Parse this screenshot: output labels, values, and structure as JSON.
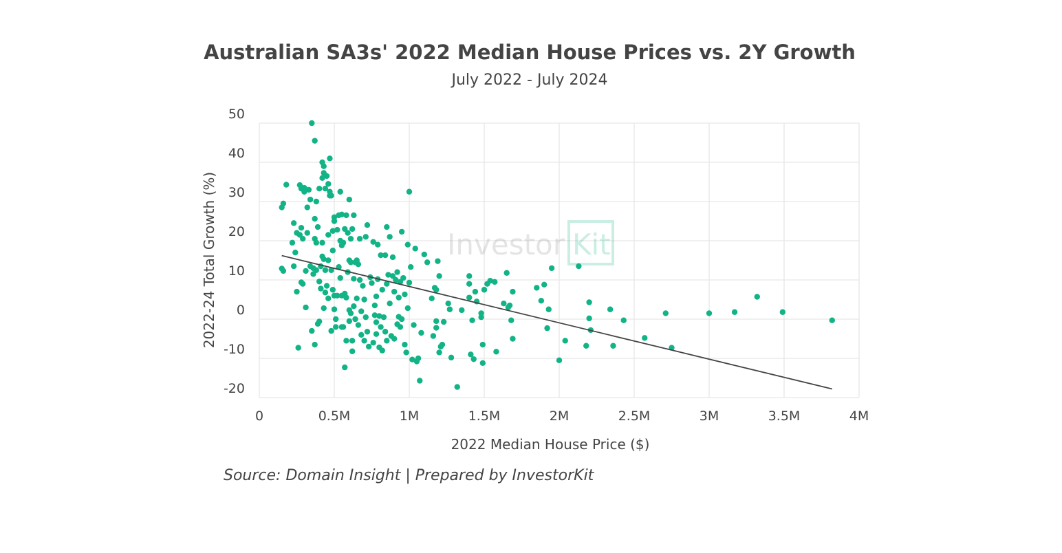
{
  "chart_data": {
    "type": "scatter",
    "title": "Australian SA3s' 2022 Median House Prices vs. 2Y Growth",
    "subtitle": "July 2022 - July 2024",
    "xlabel": "2022 Median House Price ($)",
    "ylabel": "2022-24 Total Growth (%)",
    "source": "Source: Domain Insight | Prepared by InvestorKit",
    "watermark": "InvestorKit",
    "xlim": [
      0,
      4000000
    ],
    "ylim": [
      -20,
      50
    ],
    "x_ticks": [
      0,
      500000,
      1000000,
      1500000,
      2000000,
      2500000,
      3000000,
      3500000,
      4000000
    ],
    "x_tick_labels": [
      "0",
      "0.5M",
      "1M",
      "1.5M",
      "2M",
      "2.5M",
      "3M",
      "3.5M",
      "4M"
    ],
    "y_ticks": [
      -20,
      -10,
      0,
      10,
      20,
      30,
      40,
      50
    ],
    "y_tick_labels": [
      "-20",
      "-10",
      "0",
      "10",
      "20",
      "30",
      "40",
      "50"
    ],
    "grid": true,
    "point_color": "#12b386",
    "trend_color": "#444444",
    "trendline": [
      [
        150000,
        16.2
      ],
      [
        3820000,
        -17.8
      ]
    ],
    "points_x_unit": "M",
    "points": [
      [
        0.15,
        12.9
      ],
      [
        0.16,
        12.3
      ],
      [
        0.15,
        28.5
      ],
      [
        0.16,
        29.5
      ],
      [
        0.18,
        34.3
      ],
      [
        0.22,
        19.5
      ],
      [
        0.23,
        24.5
      ],
      [
        0.23,
        13.5
      ],
      [
        0.24,
        17
      ],
      [
        0.25,
        7
      ],
      [
        0.25,
        22
      ],
      [
        0.26,
        -7.3
      ],
      [
        0.27,
        21.5
      ],
      [
        0.27,
        34.2
      ],
      [
        0.28,
        33.3
      ],
      [
        0.28,
        23.3
      ],
      [
        0.28,
        9.4
      ],
      [
        0.29,
        9
      ],
      [
        0.29,
        20.5
      ],
      [
        0.3,
        33.5
      ],
      [
        0.3,
        32.5
      ],
      [
        0.31,
        3
      ],
      [
        0.31,
        12.3
      ],
      [
        0.32,
        28.5
      ],
      [
        0.32,
        22
      ],
      [
        0.33,
        33
      ],
      [
        0.34,
        30.5
      ],
      [
        0.34,
        13.5
      ],
      [
        0.35,
        50
      ],
      [
        0.35,
        -3
      ],
      [
        0.36,
        13
      ],
      [
        0.36,
        11.5
      ],
      [
        0.37,
        45.5
      ],
      [
        0.37,
        25.6
      ],
      [
        0.37,
        20.5
      ],
      [
        0.37,
        -6.5
      ],
      [
        0.38,
        30
      ],
      [
        0.38,
        19.5
      ],
      [
        0.38,
        12.5
      ],
      [
        0.39,
        -1.2
      ],
      [
        0.39,
        23.5
      ],
      [
        0.4,
        33.3
      ],
      [
        0.4,
        -0.6
      ],
      [
        0.4,
        9.6
      ],
      [
        0.41,
        7.8
      ],
      [
        0.41,
        13.5
      ],
      [
        0.42,
        36
      ],
      [
        0.42,
        40
      ],
      [
        0.43,
        39
      ],
      [
        0.43,
        37.3
      ],
      [
        0.42,
        19.5
      ],
      [
        0.42,
        16
      ],
      [
        0.43,
        15.3
      ],
      [
        0.43,
        2.8
      ],
      [
        0.44,
        12.5
      ],
      [
        0.44,
        6.8
      ],
      [
        0.44,
        33.3
      ],
      [
        0.45,
        36.5
      ],
      [
        0.45,
        8.5
      ],
      [
        0.46,
        15
      ],
      [
        0.46,
        21.5
      ],
      [
        0.46,
        34.5
      ],
      [
        0.46,
        5.3
      ],
      [
        0.47,
        41
      ],
      [
        0.47,
        32.5
      ],
      [
        0.47,
        31.5
      ],
      [
        0.48,
        31.5
      ],
      [
        0.48,
        -3
      ],
      [
        0.48,
        12.5
      ],
      [
        0.49,
        7.5
      ],
      [
        0.49,
        22.5
      ],
      [
        0.49,
        17.5
      ],
      [
        0.5,
        26
      ],
      [
        0.5,
        25
      ],
      [
        0.5,
        6
      ],
      [
        0.5,
        2.5
      ],
      [
        0.51,
        0
      ],
      [
        0.51,
        -2
      ],
      [
        0.52,
        6
      ],
      [
        0.52,
        22.8
      ],
      [
        0.53,
        26.5
      ],
      [
        0.53,
        13.3
      ],
      [
        0.54,
        32.5
      ],
      [
        0.54,
        10.5
      ],
      [
        0.54,
        20
      ],
      [
        0.55,
        26.7
      ],
      [
        0.55,
        18.8
      ],
      [
        0.55,
        6
      ],
      [
        0.55,
        -2
      ],
      [
        0.56,
        19.5
      ],
      [
        0.56,
        -2
      ],
      [
        0.57,
        -12.3
      ],
      [
        0.57,
        6.5
      ],
      [
        0.57,
        23
      ],
      [
        0.58,
        26.5
      ],
      [
        0.58,
        5.5
      ],
      [
        0.58,
        -5.5
      ],
      [
        0.59,
        22
      ],
      [
        0.59,
        12
      ],
      [
        0.6,
        30.5
      ],
      [
        0.6,
        15
      ],
      [
        0.6,
        2.3
      ],
      [
        0.6,
        -0.5
      ],
      [
        0.61,
        20.5
      ],
      [
        0.61,
        14.5
      ],
      [
        0.61,
        1.5
      ],
      [
        0.62,
        23
      ],
      [
        0.62,
        -8.2
      ],
      [
        0.62,
        -5.5
      ],
      [
        0.63,
        26.5
      ],
      [
        0.63,
        10.3
      ],
      [
        0.63,
        3.3
      ],
      [
        0.64,
        14.5
      ],
      [
        0.64,
        0
      ],
      [
        0.65,
        15
      ],
      [
        0.65,
        5.3
      ],
      [
        0.66,
        14
      ],
      [
        0.66,
        -1.5
      ],
      [
        0.67,
        10
      ],
      [
        0.67,
        20.5
      ],
      [
        0.68,
        2
      ],
      [
        0.68,
        -4
      ],
      [
        0.69,
        8.5
      ],
      [
        0.7,
        5
      ],
      [
        0.7,
        -5.5
      ],
      [
        0.71,
        21
      ],
      [
        0.71,
        0.5
      ],
      [
        0.72,
        24
      ],
      [
        0.72,
        -3.2
      ],
      [
        0.73,
        -7
      ],
      [
        0.74,
        10.7
      ],
      [
        0.75,
        9.2
      ],
      [
        0.76,
        19.7
      ],
      [
        0.76,
        -6
      ],
      [
        0.77,
        3.5
      ],
      [
        0.77,
        1
      ],
      [
        0.78,
        5.8
      ],
      [
        0.78,
        -0.8
      ],
      [
        0.78,
        -3.8
      ],
      [
        0.79,
        10.2
      ],
      [
        0.79,
        19
      ],
      [
        0.8,
        -7.2
      ],
      [
        0.8,
        0.8
      ],
      [
        0.81,
        16.3
      ],
      [
        0.81,
        -2
      ],
      [
        0.82,
        -8
      ],
      [
        0.82,
        7.5
      ],
      [
        0.83,
        0.5
      ],
      [
        0.84,
        16.3
      ],
      [
        0.84,
        -3.2
      ],
      [
        0.85,
        23.5
      ],
      [
        0.85,
        9
      ],
      [
        0.85,
        -5.5
      ],
      [
        0.86,
        11.3
      ],
      [
        0.87,
        21
      ],
      [
        0.87,
        4
      ],
      [
        0.88,
        -4.3
      ],
      [
        0.89,
        15.8
      ],
      [
        0.89,
        11
      ],
      [
        0.9,
        7
      ],
      [
        0.9,
        -5
      ],
      [
        0.91,
        10
      ],
      [
        0.92,
        12
      ],
      [
        0.92,
        -1.3
      ],
      [
        0.93,
        0.6
      ],
      [
        0.93,
        5.5
      ],
      [
        0.94,
        -2
      ],
      [
        0.94,
        9.5
      ],
      [
        0.95,
        22.3
      ],
      [
        0.95,
        0
      ],
      [
        0.96,
        10.5
      ],
      [
        0.97,
        -6.5
      ],
      [
        0.97,
        6.3
      ],
      [
        0.98,
        -8.5
      ],
      [
        0.99,
        2.8
      ],
      [
        0.99,
        19
      ],
      [
        1.0,
        32.5
      ],
      [
        1.0,
        9.3
      ],
      [
        1.01,
        13.3
      ],
      [
        1.02,
        -10.3
      ],
      [
        1.03,
        -1.5
      ],
      [
        1.04,
        18
      ],
      [
        1.05,
        -10.8
      ],
      [
        1.06,
        -10
      ],
      [
        1.07,
        -15.7
      ],
      [
        1.08,
        -3.5
      ],
      [
        1.1,
        16.5
      ],
      [
        1.12,
        14.5
      ],
      [
        1.15,
        5.3
      ],
      [
        1.16,
        -4.3
      ],
      [
        1.17,
        8
      ],
      [
        1.18,
        7.5
      ],
      [
        1.18,
        -0.5
      ],
      [
        1.18,
        -2.2
      ],
      [
        1.19,
        14.8
      ],
      [
        1.2,
        11
      ],
      [
        1.2,
        -8.5
      ],
      [
        1.21,
        -7
      ],
      [
        1.22,
        -6.5
      ],
      [
        1.23,
        -0.7
      ],
      [
        1.26,
        4
      ],
      [
        1.27,
        2.5
      ],
      [
        1.28,
        -9.8
      ],
      [
        1.32,
        -17.3
      ],
      [
        1.35,
        2.3
      ],
      [
        1.4,
        11
      ],
      [
        1.4,
        9
      ],
      [
        1.4,
        5.5
      ],
      [
        1.41,
        -9
      ],
      [
        1.42,
        -0.3
      ],
      [
        1.43,
        -10.2
      ],
      [
        1.44,
        7
      ],
      [
        1.45,
        4.5
      ],
      [
        1.48,
        1.5
      ],
      [
        1.48,
        0.5
      ],
      [
        1.49,
        -6.5
      ],
      [
        1.49,
        -11.2
      ],
      [
        1.5,
        7.5
      ],
      [
        1.52,
        9
      ],
      [
        1.54,
        9.8
      ],
      [
        1.57,
        9.5
      ],
      [
        1.58,
        -8.3
      ],
      [
        1.63,
        4
      ],
      [
        1.65,
        11.8
      ],
      [
        1.66,
        3
      ],
      [
        1.67,
        3.5
      ],
      [
        1.68,
        -0.3
      ],
      [
        1.69,
        -5
      ],
      [
        1.69,
        7
      ],
      [
        1.85,
        8
      ],
      [
        1.88,
        4.7
      ],
      [
        1.9,
        8.8
      ],
      [
        1.92,
        -2.3
      ],
      [
        1.93,
        2.5
      ],
      [
        1.95,
        13
      ],
      [
        2.0,
        -10.5
      ],
      [
        2.04,
        -5.5
      ],
      [
        2.13,
        13.5
      ],
      [
        2.18,
        -6.8
      ],
      [
        2.2,
        4.3
      ],
      [
        2.2,
        0.2
      ],
      [
        2.21,
        -2.8
      ],
      [
        2.34,
        2.5
      ],
      [
        2.36,
        -6.8
      ],
      [
        2.43,
        -0.3
      ],
      [
        2.57,
        -4.8
      ],
      [
        2.71,
        1.5
      ],
      [
        2.75,
        -7.3
      ],
      [
        3.0,
        1.5
      ],
      [
        3.17,
        1.8
      ],
      [
        3.32,
        5.7
      ],
      [
        3.49,
        1.8
      ],
      [
        3.82,
        -0.3
      ]
    ]
  }
}
